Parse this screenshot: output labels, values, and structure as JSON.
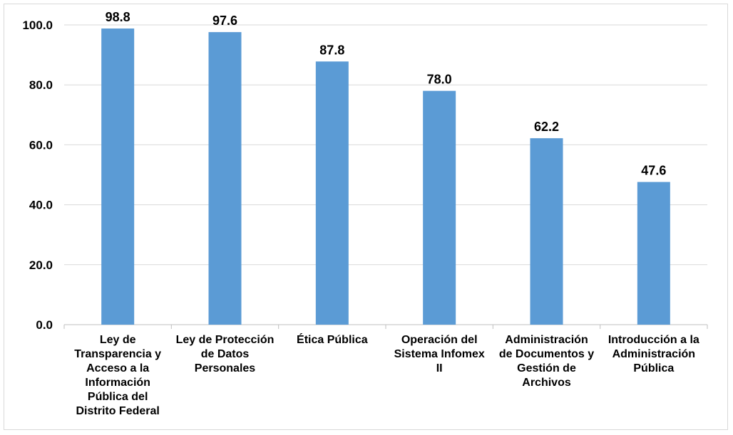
{
  "chart_data": {
    "type": "bar",
    "categories": [
      [
        "Ley de",
        "Transparencia y",
        "Acceso a la",
        "Información",
        "Pública del",
        "Distrito Federal"
      ],
      [
        "Ley de Protección",
        "de Datos",
        "Personales"
      ],
      [
        "Ética Pública"
      ],
      [
        "Operación del",
        "Sistema Infomex",
        "II"
      ],
      [
        "Administración",
        "de Documentos y",
        "Gestión de",
        "Archivos"
      ],
      [
        "Introducción a la",
        "Administración",
        "Pública"
      ]
    ],
    "values": [
      98.8,
      97.6,
      87.8,
      78.0,
      62.2,
      47.6
    ],
    "value_labels": [
      "98.8",
      "97.6",
      "87.8",
      "78.0",
      "62.2",
      "47.6"
    ],
    "yticks": [
      "0.0",
      "20.0",
      "40.0",
      "60.0",
      "80.0",
      "100.0"
    ],
    "ylim": [
      0,
      100
    ],
    "grid": true,
    "bar_color": "#5b9bd5",
    "grid_color": "#d9d9d9",
    "axis_color": "#bfbfbf"
  }
}
